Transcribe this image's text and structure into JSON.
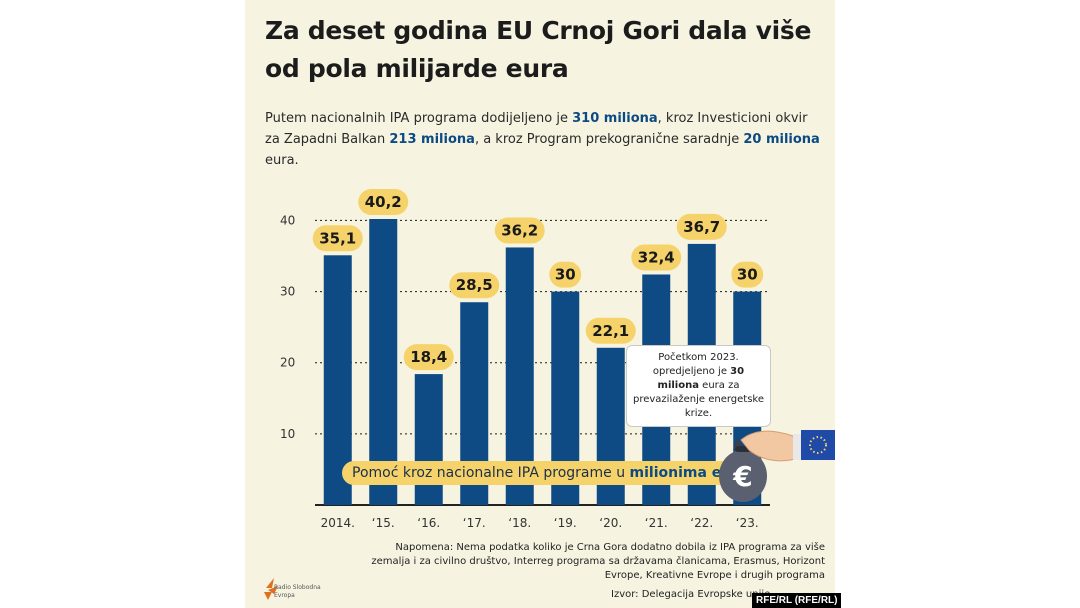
{
  "title": "Za deset godina EU Crnoj Gori dala više od pola milijarde eura",
  "subtitle": {
    "p1": "Putem nacionalnih IPA programa dodijeljeno je ",
    "b1": "310 miliona",
    "p2": ", kroz Investicioni okvir za Zapadni Balkan ",
    "b2": "213 miliona",
    "p3": ", a kroz Program prekogranične saradnje ",
    "b3": "20 miliona",
    "p4": " eura."
  },
  "chart_data": {
    "type": "bar",
    "categories": [
      "2014.",
      "‘15.",
      "‘16.",
      "‘17.",
      "‘18.",
      "‘19.",
      "‘20.",
      "‘21.",
      "‘22.",
      "‘23."
    ],
    "values": [
      35.1,
      40.2,
      18.4,
      28.5,
      36.2,
      30,
      22.1,
      32.4,
      36.7,
      30
    ],
    "value_labels": [
      "35,1",
      "40,2",
      "18,4",
      "28,5",
      "36,2",
      "30",
      "22,1",
      "32,4",
      "36,7",
      "30"
    ],
    "yticks": [
      10,
      20,
      30,
      40
    ],
    "ylim": [
      0,
      40.2
    ],
    "grid": true,
    "colors": {
      "bar": "#0e4a84",
      "label_bubble": "#f6d36a",
      "grid": "#1a1a1a",
      "background": "#f6f4e1"
    }
  },
  "legend": {
    "p1": "Pomoć kroz nacionalne IPA programe u ",
    "b1": "milionima eura",
    "p2": "."
  },
  "callout": {
    "p1": "Početkom 2023. opredjeljeno je ",
    "b1": "30 miliona",
    "p2": " eura za prevazilaženje energetske krize."
  },
  "note": "Napomena: Nema podatka koliko je Crna Gora dodatno dobila iz IPA programa za više zemalja i za civilno društvo, Interreg programa sa državama članicama, Erasmus, Horizont Evrope, Kreativne Evrope i drugih programa",
  "source": "Izvor: Delegacija Evropske unije",
  "logo": {
    "text": "Radio Slobodna Evropa",
    "icon": "rfe-logo-icon"
  },
  "credit": "RFE/RL (RFE/RL)",
  "illustration": {
    "icons": [
      "euro-money-bag-icon",
      "hand-icon",
      "eu-flag-icon"
    ]
  }
}
